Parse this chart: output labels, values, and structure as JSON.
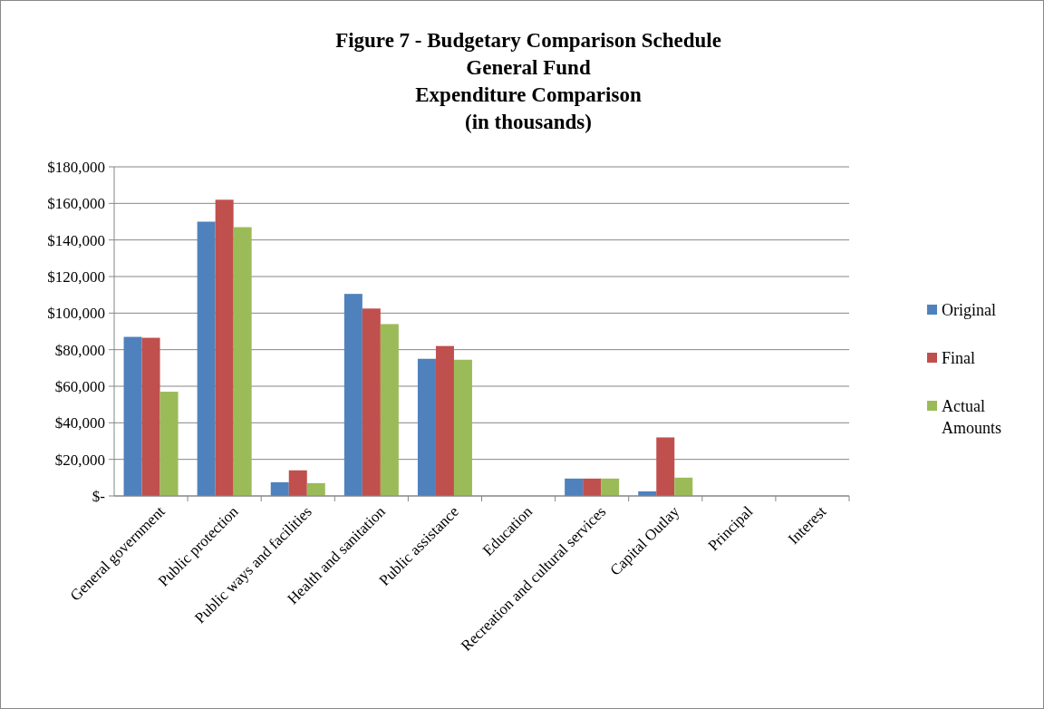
{
  "chart_data": {
    "type": "bar",
    "title": "Figure 7 - Budgetary Comparison Schedule\nGeneral Fund\nExpenditure Comparison\n(in thousands)",
    "categories": [
      "General government",
      "Public protection",
      "Public ways and facilities",
      "Health and sanitation",
      "Public assistance",
      "Education",
      "Recreation and cultural services",
      "Capital Outlay",
      "Principal",
      "Interest"
    ],
    "series": [
      {
        "name": "Original",
        "color": "#4f81bd",
        "values": [
          87000,
          150000,
          7500,
          110500,
          75000,
          0,
          9500,
          2500,
          0,
          0
        ]
      },
      {
        "name": "Final",
        "color": "#c0504d",
        "values": [
          86500,
          162000,
          14000,
          102500,
          82000,
          0,
          9500,
          32000,
          0,
          0
        ]
      },
      {
        "name": "Actual Amounts",
        "color": "#9bbb59",
        "values": [
          57000,
          147000,
          7000,
          94000,
          74500,
          0,
          9500,
          10000,
          0,
          0
        ]
      }
    ],
    "ylim": [
      0,
      180000
    ],
    "yticks": [
      {
        "value": 0,
        "label": "$-"
      },
      {
        "value": 20000,
        "label": "$20,000"
      },
      {
        "value": 40000,
        "label": "$40,000"
      },
      {
        "value": 60000,
        "label": "$60,000"
      },
      {
        "value": 80000,
        "label": "$80,000"
      },
      {
        "value": 100000,
        "label": "$100,000"
      },
      {
        "value": 120000,
        "label": "$120,000"
      },
      {
        "value": 140000,
        "label": "$140,000"
      },
      {
        "value": 160000,
        "label": "$160,000"
      },
      {
        "value": 180000,
        "label": "$180,000"
      }
    ],
    "grid": "y",
    "legend": "right"
  }
}
